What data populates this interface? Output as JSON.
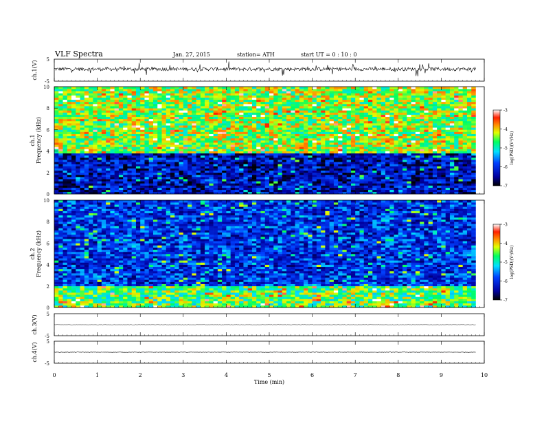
{
  "header": {
    "title": "VLF  Spectra",
    "date": "Jan.  27,  2015",
    "station": "station= ATH",
    "start": "start  UT  =    0  : 10 : 0"
  },
  "chart_data": [
    {
      "type": "line",
      "panel": "ch1-waveform",
      "ylabel": "ch.1(V)",
      "ylim": [
        -5,
        5
      ],
      "yticks": [
        "5",
        "-5"
      ],
      "x_range_min": [
        0,
        9.8
      ],
      "baseline_v": 0.5,
      "amplitude_v": 1.6
    },
    {
      "type": "heatmap",
      "panel": "ch1-spectrogram",
      "ylabel": "ch.1\nFrequency  (kHz)",
      "ylim_khz": [
        0,
        10
      ],
      "yticks": [
        "0",
        "2",
        "4",
        "6",
        "8",
        "10"
      ],
      "colorbar": {
        "label": "log(PSD)(V²/Hz)",
        "range": [
          -7,
          -3
        ],
        "ticks": [
          "-3",
          "-4",
          "-5",
          "-6",
          "-7"
        ]
      },
      "structure": {
        "hf_band_khz": [
          3.8,
          10
        ],
        "hf_logpsd": -4.4,
        "lf_band_khz": [
          0,
          3.8
        ],
        "lf_logpsd": -6.3
      }
    },
    {
      "type": "heatmap",
      "panel": "ch2-spectrogram",
      "ylabel": "ch.2\nFrequency  (kHz)",
      "ylim_khz": [
        0,
        10
      ],
      "yticks": [
        "0",
        "2",
        "4",
        "6",
        "8",
        "10"
      ],
      "colorbar": {
        "label": "log(PSD)(V²/Hz)",
        "range": [
          -7,
          -3
        ],
        "ticks": [
          "-3",
          "-4",
          "-5",
          "-6",
          "-7"
        ]
      },
      "structure": {
        "hf_band_khz": [
          2,
          10
        ],
        "hf_logpsd": -6.0,
        "lf_band_khz": [
          0,
          2
        ],
        "lf_logpsd": -4.6
      }
    },
    {
      "type": "line",
      "panel": "ch3-waveform",
      "ylabel": "ch.3(V)",
      "ylim": [
        -5,
        5
      ],
      "yticks": [
        "5",
        "-5"
      ],
      "x_range_min": [
        0,
        9.8
      ],
      "baseline_v": 0,
      "amplitude_v": 0.15
    },
    {
      "type": "line",
      "panel": "ch4-waveform",
      "ylabel": "ch.4(V)",
      "ylim": [
        -5,
        5
      ],
      "yticks": [
        "5",
        "-5"
      ],
      "x_range_min": [
        0,
        9.8
      ],
      "baseline_v": 0,
      "amplitude_v": 0.2
    }
  ],
  "xaxis": {
    "label": "Time  (min)",
    "range": [
      0,
      10
    ],
    "ticks": [
      "0",
      "1",
      "2",
      "3",
      "4",
      "5",
      "6",
      "7",
      "8",
      "9",
      "10"
    ]
  }
}
